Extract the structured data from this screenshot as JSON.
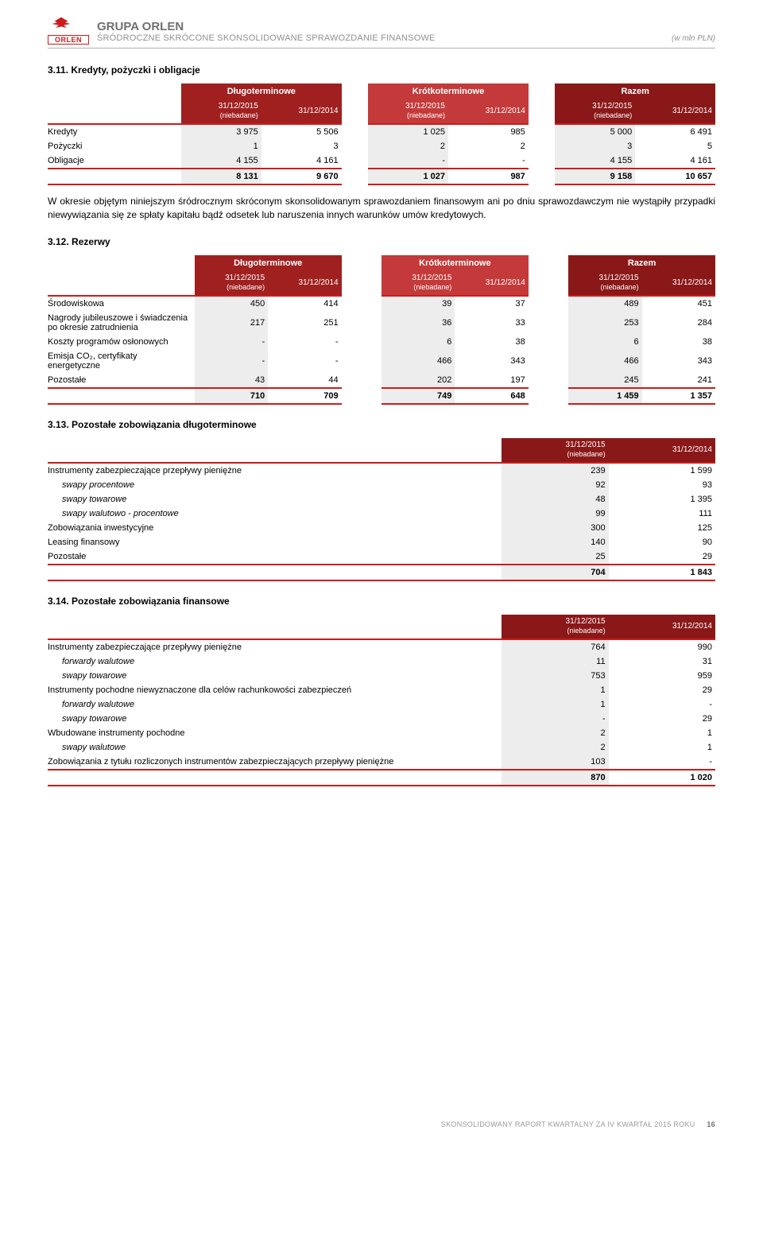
{
  "colors": {
    "brand_red": "#cc1c1c",
    "header_bg_long": "#a02020",
    "header_bg_short": "#c43a3a",
    "header_bg_total": "#8a1818",
    "row_shade": "#ededed",
    "text_gray": "#707070",
    "text_light": "#909090"
  },
  "header": {
    "company": "GRUPA ORLEN",
    "subtitle": "ŚRÓDROCZNE SKRÓCONE SKONSOLIDOWANE SPRAWOZDANIE FINANSOWE",
    "unit": "(w mln PLN)",
    "logo_text": "ORLEN"
  },
  "s311": {
    "title": "3.11. Kredyty, pożyczki i obligacje",
    "group_headers": [
      "Długoterminowe",
      "Krótkoterminowe",
      "Razem"
    ],
    "col_dates": [
      "31/12/2015",
      "31/12/2014",
      "31/12/2015",
      "31/12/2014",
      "31/12/2015",
      "31/12/2014"
    ],
    "col_sub": "(niebadane)",
    "rows": [
      {
        "label": "Kredyty",
        "vals": [
          "3 975",
          "5 506",
          "1 025",
          "985",
          "5 000",
          "6 491"
        ]
      },
      {
        "label": "Pożyczki",
        "vals": [
          "1",
          "3",
          "2",
          "2",
          "3",
          "5"
        ]
      },
      {
        "label": "Obligacje",
        "vals": [
          "4 155",
          "4 161",
          "-",
          "-",
          "4 155",
          "4 161"
        ]
      }
    ],
    "totals": [
      "8 131",
      "9 670",
      "1 027",
      "987",
      "9 158",
      "10 657"
    ],
    "paragraph": "W okresie objętym niniejszym śródrocznym skróconym skonsolidowanym sprawozdaniem finansowym ani po dniu sprawozdawczym nie wystąpiły przypadki niewywiązania się ze spłaty kapitału bądź odsetek lub naruszenia innych warunków umów kredytowych."
  },
  "s312": {
    "title": "3.12. Rezerwy",
    "group_headers": [
      "Długoterminowe",
      "Krótkoterminowe",
      "Razem"
    ],
    "col_dates": [
      "31/12/2015",
      "31/12/2014",
      "31/12/2015",
      "31/12/2014",
      "31/12/2015",
      "31/12/2014"
    ],
    "col_sub": "(niebadane)",
    "rows": [
      {
        "label": "Środowiskowa",
        "vals": [
          "450",
          "414",
          "39",
          "37",
          "489",
          "451"
        ]
      },
      {
        "label": "Nagrody jubileuszowe i świadczenia po okresie zatrudnienia",
        "vals": [
          "217",
          "251",
          "36",
          "33",
          "253",
          "284"
        ]
      },
      {
        "label": "Koszty programów osłonowych",
        "vals": [
          "-",
          "-",
          "6",
          "38",
          "6",
          "38"
        ]
      },
      {
        "label": "Emisja CO₂, certyfikaty energetyczne",
        "vals": [
          "-",
          "-",
          "466",
          "343",
          "466",
          "343"
        ]
      },
      {
        "label": "Pozostałe",
        "vals": [
          "43",
          "44",
          "202",
          "197",
          "245",
          "241"
        ]
      }
    ],
    "totals": [
      "710",
      "709",
      "749",
      "648",
      "1 459",
      "1 357"
    ]
  },
  "s313": {
    "title": "3.13. Pozostałe zobowiązania długoterminowe",
    "col_dates": [
      "31/12/2015",
      "31/12/2014"
    ],
    "col_sub": "(niebadane)",
    "rows": [
      {
        "label": "Instrumenty zabezpieczające przepływy pieniężne",
        "vals": [
          "239",
          "1 599"
        ],
        "indent": 0
      },
      {
        "label": "swapy procentowe",
        "vals": [
          "92",
          "93"
        ],
        "indent": 1
      },
      {
        "label": "swapy towarowe",
        "vals": [
          "48",
          "1 395"
        ],
        "indent": 1
      },
      {
        "label": "swapy walutowo - procentowe",
        "vals": [
          "99",
          "111"
        ],
        "indent": 1
      },
      {
        "label": "Zobowiązania inwestycyjne",
        "vals": [
          "300",
          "125"
        ],
        "indent": 0
      },
      {
        "label": "Leasing finansowy",
        "vals": [
          "140",
          "90"
        ],
        "indent": 0
      },
      {
        "label": "Pozostałe",
        "vals": [
          "25",
          "29"
        ],
        "indent": 0
      }
    ],
    "totals": [
      "704",
      "1 843"
    ]
  },
  "s314": {
    "title": "3.14. Pozostałe zobowiązania finansowe",
    "col_dates": [
      "31/12/2015",
      "31/12/2014"
    ],
    "col_sub": "(niebadane)",
    "rows": [
      {
        "label": "Instrumenty zabezpieczające przepływy pieniężne",
        "vals": [
          "764",
          "990"
        ],
        "indent": 0
      },
      {
        "label": "forwardy walutowe",
        "vals": [
          "11",
          "31"
        ],
        "indent": 1
      },
      {
        "label": "swapy towarowe",
        "vals": [
          "753",
          "959"
        ],
        "indent": 1
      },
      {
        "label": "Instrumenty pochodne niewyznaczone dla celów rachunkowości zabezpieczeń",
        "vals": [
          "1",
          "29"
        ],
        "indent": 0
      },
      {
        "label": "forwardy walutowe",
        "vals": [
          "1",
          "-"
        ],
        "indent": 1
      },
      {
        "label": "swapy towarowe",
        "vals": [
          "-",
          "29"
        ],
        "indent": 1
      },
      {
        "label": "Wbudowane instrumenty pochodne",
        "vals": [
          "2",
          "1"
        ],
        "indent": 0
      },
      {
        "label": "swapy walutowe",
        "vals": [
          "2",
          "1"
        ],
        "indent": 1
      },
      {
        "label": "Zobowiązania z tytułu rozliczonych instrumentów zabezpieczających przepływy pieniężne",
        "vals": [
          "103",
          "-"
        ],
        "indent": 0
      }
    ],
    "totals": [
      "870",
      "1 020"
    ]
  },
  "footer": {
    "text": "SKONSOLIDOWANY RAPORT KWARTALNY ZA IV KWARTAŁ 2015 ROKU",
    "page": "16"
  }
}
